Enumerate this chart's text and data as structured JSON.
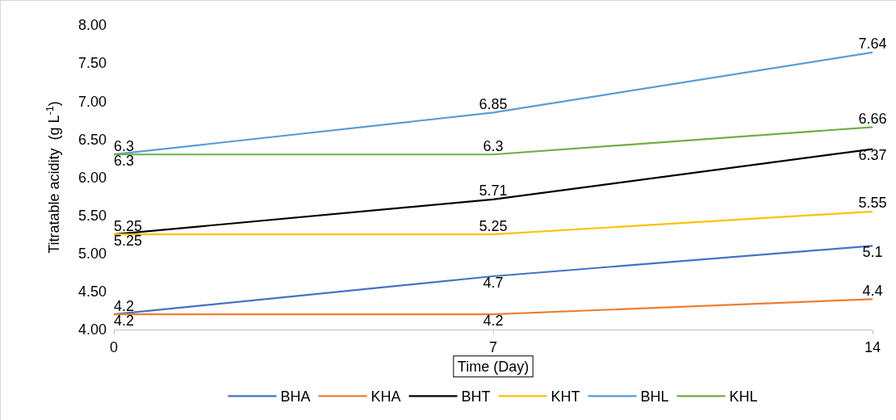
{
  "chart_data": {
    "type": "line",
    "xlabel": "Time (Day)",
    "ylabel": "Titratable acidity  (g L$^{-1}$)",
    "x": [
      0,
      7,
      14
    ],
    "series": [
      {
        "name": "BHA",
        "color": "#4472c4",
        "values": [
          4.2,
          4.7,
          5.1
        ]
      },
      {
        "name": "KHA",
        "color": "#ed7d31",
        "values": [
          4.2,
          4.2,
          4.4
        ]
      },
      {
        "name": "BHT",
        "color": "#000000",
        "values": [
          5.25,
          5.71,
          6.37
        ]
      },
      {
        "name": "KHT",
        "color": "#ffc000",
        "values": [
          5.25,
          5.25,
          5.55
        ]
      },
      {
        "name": "BHL",
        "color": "#5b9bd5",
        "values": [
          6.3,
          6.85,
          7.64
        ]
      },
      {
        "name": "KHL",
        "color": "#70ad47",
        "values": [
          6.3,
          6.3,
          6.66
        ]
      }
    ],
    "xlim": [
      0,
      14
    ],
    "xticks": [
      0,
      7,
      14
    ],
    "ylim": [
      4,
      8
    ],
    "yticks": [
      {
        "value": 4,
        "label": "4.00"
      },
      {
        "value": 4.5,
        "label": "4.50"
      },
      {
        "value": 5,
        "label": "5.00"
      },
      {
        "value": 5.5,
        "label": "5.50"
      },
      {
        "value": 6,
        "label": "6.00"
      },
      {
        "value": 6.5,
        "label": "6.50"
      },
      {
        "value": 7,
        "label": "7.00"
      },
      {
        "value": 7.5,
        "label": "7.50"
      },
      {
        "value": 8,
        "label": "8.00"
      }
    ],
    "grid": false,
    "legend": "bottom",
    "marker": "none",
    "line_style": "solid",
    "data_labels": true
  }
}
